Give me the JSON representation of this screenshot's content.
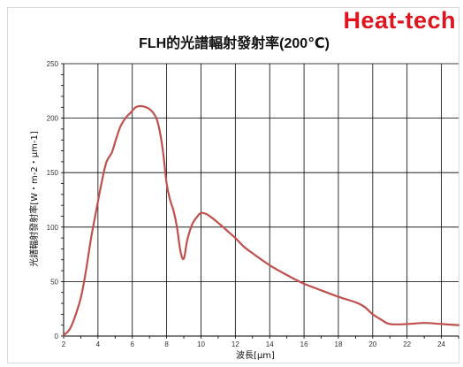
{
  "brand": "Heat-tech",
  "chart_data": {
    "type": "line",
    "title": "FLH的光譜輻射發射率(200℃)",
    "xlabel": "波長[μm]",
    "ylabel": "光譜輻射發射率[W・m-2・μm-1]",
    "xlim": [
      2,
      25
    ],
    "ylim": [
      0,
      250
    ],
    "x_ticks": [
      2,
      4,
      6,
      8,
      10,
      12,
      14,
      16,
      18,
      20,
      22,
      24
    ],
    "y_ticks": [
      0,
      50,
      100,
      150,
      200,
      250
    ],
    "grid": true,
    "colors": {
      "line": "#c0504d",
      "grid": "#000000"
    },
    "series": [
      {
        "x": [
          2,
          2.3,
          2.6,
          3.0,
          3.3,
          3.6,
          3.9,
          4.2,
          4.5,
          4.8,
          5.0,
          5.3,
          5.6,
          5.9,
          6.2,
          6.5,
          6.8,
          7.1,
          7.4,
          7.6,
          7.8,
          8.0,
          8.2,
          8.4,
          8.6,
          8.8,
          9.0,
          9.2,
          9.5,
          9.8,
          10.0,
          10.3,
          10.6,
          11.0,
          11.5,
          12.0,
          12.5,
          13.0,
          14.0,
          15.0,
          16.0,
          17.0,
          18.0,
          19.0,
          19.5,
          20.0,
          20.5,
          21.0,
          22.0,
          23.0,
          24.0,
          25.0
        ],
        "y": [
          1,
          5,
          15,
          35,
          60,
          90,
          115,
          140,
          160,
          168,
          178,
          192,
          200,
          205,
          210,
          211,
          210,
          207,
          200,
          188,
          168,
          140,
          125,
          115,
          100,
          78,
          71,
          88,
          103,
          110,
          113,
          112,
          109,
          104,
          97,
          90,
          82,
          76,
          65,
          56,
          48,
          42,
          36,
          31,
          27,
          20,
          15,
          11,
          11,
          12,
          11,
          10
        ]
      }
    ]
  }
}
